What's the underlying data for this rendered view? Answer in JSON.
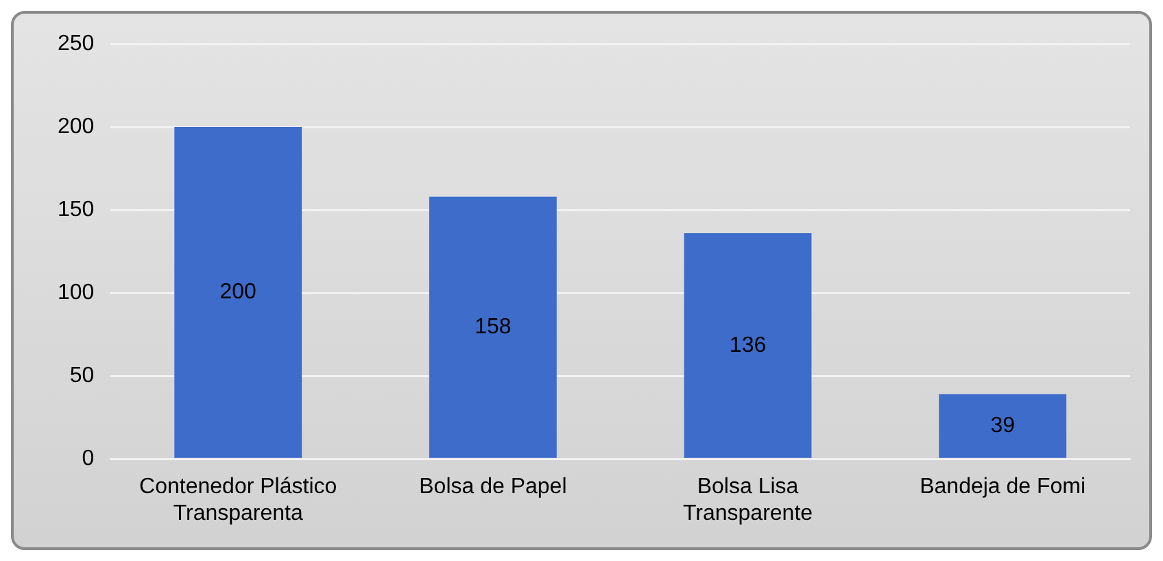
{
  "chart_data": {
    "type": "bar",
    "categories": [
      "Contenedor Plástico Transparenta",
      "Bolsa de Papel",
      "Bolsa Lisa Transparente",
      "Bandeja de Fomi"
    ],
    "values": [
      200,
      158,
      136,
      39
    ],
    "color": "#3d6cca",
    "ylim": [
      0,
      250
    ],
    "yticks": [
      0,
      50,
      100,
      150,
      200,
      250
    ],
    "grid": "y",
    "data_labels": true,
    "legend": false
  }
}
